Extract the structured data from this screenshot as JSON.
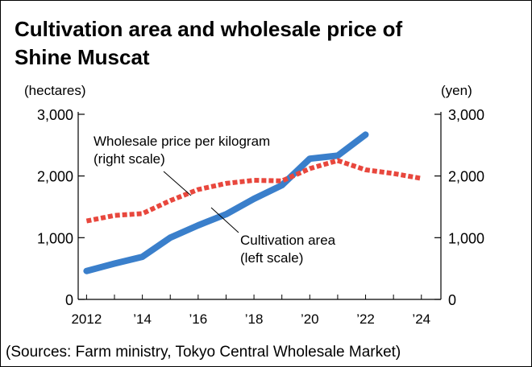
{
  "chart_data": {
    "type": "line",
    "title_lines": [
      "Cultivation area and wholesale price of",
      "Shine Muscat"
    ],
    "left_axis": {
      "unit": "(hectares)",
      "ylim": [
        0,
        3000
      ],
      "ticks": [
        0,
        1000,
        2000,
        3000
      ],
      "tick_labels": [
        "0",
        "1,000",
        "2,000",
        "3,000"
      ]
    },
    "right_axis": {
      "unit": "(yen)",
      "ylim": [
        0,
        3000
      ],
      "ticks": [
        0,
        1000,
        2000,
        3000
      ],
      "tick_labels": [
        "0",
        "1,000",
        "2,000",
        "3,000"
      ]
    },
    "x_range": [
      2011.7,
      2024.7
    ],
    "x_ticks": [
      2012,
      2014,
      2016,
      2018,
      2020,
      2022,
      2024
    ],
    "x_tick_labels": [
      "2012",
      "’14",
      "’16",
      "’18",
      "’20",
      "’22",
      "’24"
    ],
    "series": [
      {
        "name": "Cultivation area",
        "axis": "left",
        "color": "#3a7fcb",
        "style": "solid",
        "label_lines": [
          "Cultivation area",
          "(left scale)"
        ],
        "x": [
          2012,
          2013,
          2014,
          2015,
          2016,
          2017,
          2018,
          2019,
          2020,
          2021,
          2022
        ],
        "values": [
          460,
          580,
          690,
          1000,
          1200,
          1380,
          1630,
          1850,
          2280,
          2330,
          2670
        ]
      },
      {
        "name": "Wholesale price per kilogram",
        "axis": "right",
        "color": "#e8473d",
        "style": "dotted",
        "label_lines": [
          "Wholesale price per kilogram",
          "(right scale)"
        ],
        "x": [
          2012,
          2013,
          2014,
          2015,
          2016,
          2017,
          2018,
          2019,
          2020,
          2021,
          2022,
          2023,
          2024
        ],
        "values": [
          1270,
          1360,
          1390,
          1600,
          1780,
          1880,
          1930,
          1920,
          2120,
          2250,
          2100,
          2040,
          1960
        ]
      }
    ],
    "source": "(Sources: Farm ministry, Tokyo Central Wholesale Market)"
  }
}
